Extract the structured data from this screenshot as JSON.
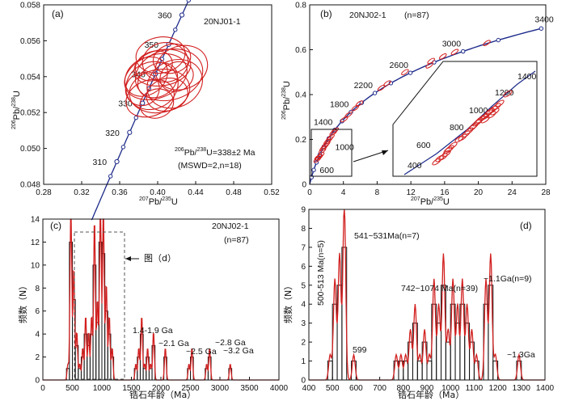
{
  "chart_data": [
    {
      "panel": "a",
      "type": "scatter",
      "title": "20NJ01-1",
      "xlabel": "207Pb/235U",
      "ylabel": "206Pb/238U",
      "xlim": [
        0.28,
        0.52
      ],
      "ylim": [
        0.048,
        0.058
      ],
      "xticks": [
        "0.28",
        "0.32",
        "0.36",
        "0.40",
        "0.44",
        "0.48",
        "0.52"
      ],
      "yticks": [
        "0.048",
        "0.050",
        "0.052",
        "0.054",
        "0.056",
        "0.058"
      ],
      "concordia_age_labels": [
        "310",
        "320",
        "330",
        "340",
        "350",
        "360"
      ],
      "result_line1_pre": "206",
      "result_line1_mid": "Pb/",
      "result_line1_sup": "238",
      "result_line1_post": "U=338±2 Ma",
      "result_line2": "(MSWD=2,n=18)",
      "ellipses": [
        {
          "x": 0.398,
          "y": 0.054,
          "rx": 0.034,
          "ry": 0.0012,
          "angle": -20
        },
        {
          "x": 0.405,
          "y": 0.0545,
          "rx": 0.03,
          "ry": 0.001,
          "angle": -10
        },
        {
          "x": 0.394,
          "y": 0.0535,
          "rx": 0.028,
          "ry": 0.0013,
          "angle": -25
        },
        {
          "x": 0.412,
          "y": 0.0541,
          "rx": 0.036,
          "ry": 0.0014,
          "angle": -15
        },
        {
          "x": 0.4,
          "y": 0.0538,
          "rx": 0.022,
          "ry": 0.0009,
          "angle": -30
        },
        {
          "x": 0.408,
          "y": 0.0548,
          "rx": 0.024,
          "ry": 0.0011,
          "angle": -5
        },
        {
          "x": 0.392,
          "y": 0.0528,
          "rx": 0.026,
          "ry": 0.001,
          "angle": -20
        },
        {
          "x": 0.418,
          "y": 0.0536,
          "rx": 0.03,
          "ry": 0.0013,
          "angle": -25
        },
        {
          "x": 0.402,
          "y": 0.0532,
          "rx": 0.032,
          "ry": 0.0012,
          "angle": -10
        },
        {
          "x": 0.396,
          "y": 0.0546,
          "rx": 0.02,
          "ry": 0.0008,
          "angle": -20
        },
        {
          "x": 0.425,
          "y": 0.0545,
          "rx": 0.028,
          "ry": 0.0012,
          "angle": -20
        },
        {
          "x": 0.388,
          "y": 0.054,
          "rx": 0.024,
          "ry": 0.001,
          "angle": -35
        },
        {
          "x": 0.41,
          "y": 0.053,
          "rx": 0.022,
          "ry": 0.0009,
          "angle": -15
        },
        {
          "x": 0.403,
          "y": 0.0552,
          "rx": 0.026,
          "ry": 0.001,
          "angle": -10
        },
        {
          "x": 0.384,
          "y": 0.0533,
          "rx": 0.018,
          "ry": 0.0009,
          "angle": -30
        },
        {
          "x": 0.415,
          "y": 0.055,
          "rx": 0.02,
          "ry": 0.0008,
          "angle": -15
        },
        {
          "x": 0.399,
          "y": 0.0525,
          "rx": 0.018,
          "ry": 0.0008,
          "angle": -20
        },
        {
          "x": 0.42,
          "y": 0.054,
          "rx": 0.018,
          "ry": 0.0008,
          "angle": -25
        }
      ]
    },
    {
      "panel": "b",
      "type": "scatter",
      "title": "20NJ02-1",
      "subtitle": "(n=87)",
      "xlabel": "207Pb/235U",
      "ylabel": "206Pb/238U",
      "xlim": [
        0,
        28
      ],
      "ylim": [
        0,
        0.8
      ],
      "xticks": [
        "0",
        "4",
        "8",
        "12",
        "16",
        "20",
        "24",
        "28"
      ],
      "yticks": [
        "0",
        "0.2",
        "0.4",
        "0.6",
        "0.8"
      ],
      "concordia_age_labels": [
        "600",
        "1000",
        "1400",
        "1800",
        "2200",
        "2600",
        "3000",
        "3400"
      ],
      "inset_labels": [
        "400",
        "600",
        "800",
        "1000",
        "1200",
        "1400"
      ],
      "points": [
        {
          "x": 0.9,
          "y": 0.11
        },
        {
          "x": 1.0,
          "y": 0.12
        },
        {
          "x": 1.1,
          "y": 0.12
        },
        {
          "x": 1.3,
          "y": 0.13
        },
        {
          "x": 1.5,
          "y": 0.15
        },
        {
          "x": 1.6,
          "y": 0.16
        },
        {
          "x": 1.8,
          "y": 0.17
        },
        {
          "x": 2.0,
          "y": 0.18
        },
        {
          "x": 2.1,
          "y": 0.19
        },
        {
          "x": 2.3,
          "y": 0.2
        },
        {
          "x": 2.5,
          "y": 0.21
        },
        {
          "x": 2.8,
          "y": 0.23
        },
        {
          "x": 3.0,
          "y": 0.24
        },
        {
          "x": 4.1,
          "y": 0.29
        },
        {
          "x": 4.6,
          "y": 0.31
        },
        {
          "x": 5.4,
          "y": 0.34
        },
        {
          "x": 5.9,
          "y": 0.36
        },
        {
          "x": 8.5,
          "y": 0.43
        },
        {
          "x": 9.2,
          "y": 0.45
        },
        {
          "x": 11.3,
          "y": 0.5
        },
        {
          "x": 14.2,
          "y": 0.53
        },
        {
          "x": 14.4,
          "y": 0.55
        },
        {
          "x": 15.8,
          "y": 0.57
        },
        {
          "x": 17.2,
          "y": 0.59
        },
        {
          "x": 21.0,
          "y": 0.63
        }
      ]
    },
    {
      "panel": "c",
      "type": "bar",
      "title": "20NJ02-1",
      "subtitle": "(n=87)",
      "xlabel": "锆石年龄（Ma）",
      "ylabel": "频数（N）",
      "xlim": [
        0,
        4000
      ],
      "ylim": [
        0,
        14
      ],
      "xticks": [
        "0",
        "500",
        "1000",
        "1500",
        "2000",
        "2500",
        "3000",
        "3500",
        "4000"
      ],
      "yticks": [
        "0",
        "2",
        "4",
        "6",
        "8",
        "10",
        "12",
        "14"
      ],
      "bin_width": 50,
      "bins": [
        [
          425,
          1
        ],
        [
          475,
          12
        ],
        [
          525,
          7
        ],
        [
          575,
          3
        ],
        [
          625,
          1
        ],
        [
          675,
          2
        ],
        [
          725,
          4
        ],
        [
          775,
          3
        ],
        [
          825,
          4
        ],
        [
          875,
          10
        ],
        [
          925,
          5
        ],
        [
          975,
          12
        ],
        [
          1025,
          11
        ],
        [
          1075,
          6
        ],
        [
          1125,
          4
        ],
        [
          1175,
          2
        ],
        [
          1575,
          1
        ],
        [
          1625,
          2
        ],
        [
          1675,
          4
        ],
        [
          1725,
          1
        ],
        [
          1775,
          2
        ],
        [
          1825,
          1
        ],
        [
          1875,
          3
        ],
        [
          2075,
          2
        ],
        [
          2475,
          1
        ],
        [
          2525,
          2
        ],
        [
          2775,
          1
        ],
        [
          2825,
          2
        ],
        [
          3175,
          1
        ]
      ],
      "callout": "图（d）",
      "annotations": [
        "1.4-1.9 Ga",
        "~2.1 Ga",
        "~2.5 Ga",
        "~2.8 Ga",
        "~3.2 Ga"
      ]
    },
    {
      "panel": "d",
      "type": "bar",
      "xlabel": "锆石年龄（Ma）",
      "ylabel": "频数（N）",
      "xlim": [
        400,
        1400
      ],
      "ylim": [
        0,
        9
      ],
      "xticks": [
        "400",
        "500",
        "600",
        "700",
        "800",
        "900",
        "1000",
        "1100",
        "1200",
        "1300",
        "1400"
      ],
      "yticks": [
        "0",
        "1",
        "2",
        "3",
        "4",
        "5",
        "6",
        "7",
        "8",
        "9"
      ],
      "bin_width": 20,
      "bins": [
        [
          490,
          1
        ],
        [
          510,
          4
        ],
        [
          530,
          5
        ],
        [
          550,
          7
        ],
        [
          590,
          1
        ],
        [
          770,
          1
        ],
        [
          790,
          1
        ],
        [
          810,
          1
        ],
        [
          830,
          2
        ],
        [
          850,
          3
        ],
        [
          870,
          1
        ],
        [
          890,
          2
        ],
        [
          910,
          1
        ],
        [
          930,
          4
        ],
        [
          950,
          3
        ],
        [
          970,
          5
        ],
        [
          990,
          2
        ],
        [
          1010,
          4
        ],
        [
          1030,
          3
        ],
        [
          1050,
          4
        ],
        [
          1070,
          3
        ],
        [
          1090,
          2
        ],
        [
          1110,
          1
        ],
        [
          1150,
          4
        ],
        [
          1170,
          5
        ],
        [
          1190,
          1
        ],
        [
          1290,
          1
        ]
      ],
      "annotations": [
        "500-513 Ma(n=5)",
        "541~531Ma(n=7)",
        "599",
        "742~1074 Ma(n=39)",
        "~1.1Ga(n=9)",
        "~1.3Ga"
      ]
    }
  ],
  "panel_labels": {
    "a": "(a)",
    "b": "(b)",
    "c": "(c)",
    "d": "(d)"
  },
  "colors": {
    "concordia": "#1c2a8a",
    "data": "#d21f1f",
    "axis": "#111111"
  }
}
